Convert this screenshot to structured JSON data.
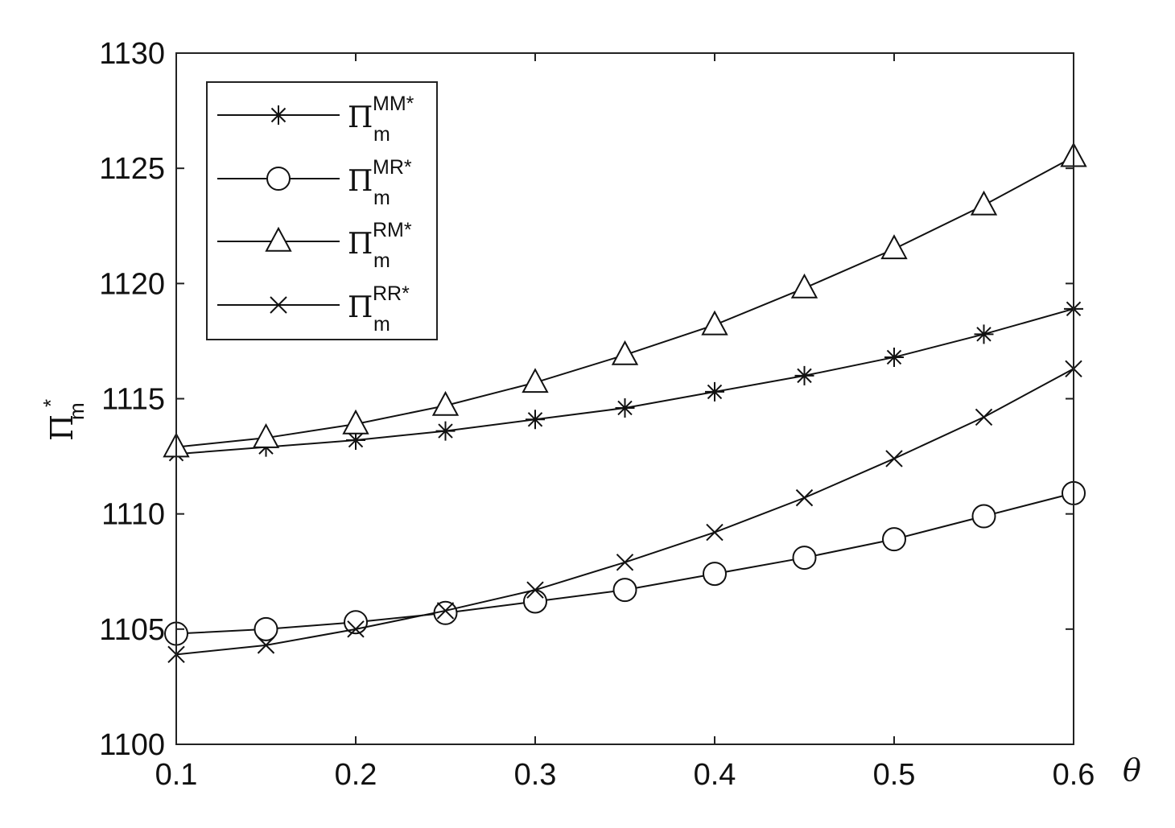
{
  "chart_data": {
    "type": "line",
    "xlabel": "θ",
    "ylabel": {
      "main": "Π",
      "sub": "m",
      "sup": "*"
    },
    "xlim": [
      0.1,
      0.6
    ],
    "ylim": [
      1100,
      1130
    ],
    "xticks": [
      "0.1",
      "0.2",
      "0.3",
      "0.4",
      "0.5",
      "0.6"
    ],
    "yticks": [
      "1100",
      "1105",
      "1110",
      "1115",
      "1120",
      "1125",
      "1130"
    ],
    "grid": false,
    "legend_position": "top-left",
    "x": [
      0.1,
      0.15,
      0.2,
      0.25,
      0.3,
      0.35,
      0.4,
      0.45,
      0.5,
      0.55,
      0.6
    ],
    "series": [
      {
        "name": "Π_m^MM*",
        "label_main": "Π",
        "label_sup": "MM*",
        "label_sub": "m",
        "marker": "asterisk",
        "values": [
          1112.6,
          1112.9,
          1113.2,
          1113.6,
          1114.1,
          1114.6,
          1115.3,
          1116.0,
          1116.8,
          1117.8,
          1118.9
        ]
      },
      {
        "name": "Π_m^MR*",
        "label_main": "Π",
        "label_sup": "MR*",
        "label_sub": "m",
        "marker": "circle",
        "values": [
          1104.8,
          1105.0,
          1105.3,
          1105.7,
          1106.2,
          1106.7,
          1107.4,
          1108.1,
          1108.9,
          1109.9,
          1110.9
        ]
      },
      {
        "name": "Π_m^RM*",
        "label_main": "Π",
        "label_sup": "RM*",
        "label_sub": "m",
        "marker": "triangle",
        "values": [
          1112.9,
          1113.3,
          1113.9,
          1114.7,
          1115.7,
          1116.9,
          1118.2,
          1119.8,
          1121.5,
          1123.4,
          1125.5
        ]
      },
      {
        "name": "Π_m^RR*",
        "label_main": "Π",
        "label_sup": "RR*",
        "label_sub": "m",
        "marker": "x",
        "values": [
          1103.9,
          1104.3,
          1105.0,
          1105.8,
          1106.7,
          1107.9,
          1109.2,
          1110.7,
          1112.4,
          1114.2,
          1116.3
        ]
      }
    ]
  }
}
